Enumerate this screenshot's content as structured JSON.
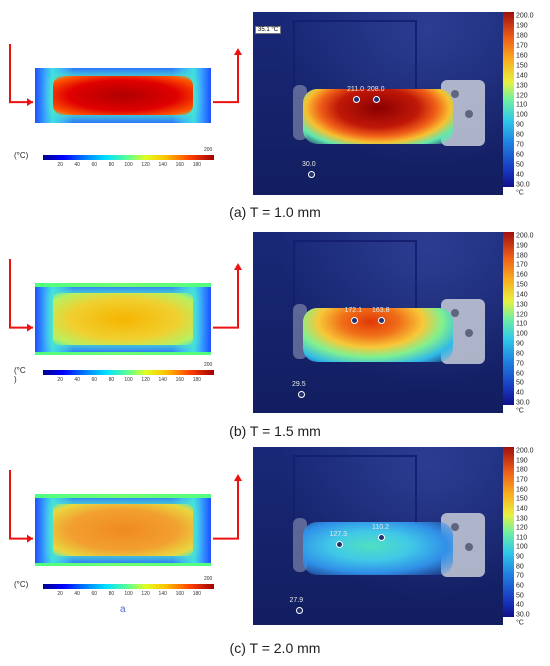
{
  "panels": [
    {
      "caption": "(a) T = 1.0 mm",
      "unit": "(°C)",
      "extra_label": "",
      "max_temp": "35.1 °C",
      "hot_level": 1.0,
      "markers": [
        {
          "label": "211.0",
          "fx": 0.4,
          "fy": 0.46
        },
        {
          "label": "208.0",
          "fx": 0.48,
          "fy": 0.46
        },
        {
          "label": "30.0",
          "fx": 0.22,
          "fy": 0.87
        }
      ]
    },
    {
      "caption": "(b) T = 1.5 mm",
      "unit": "(°C\n)",
      "extra_label": "",
      "max_temp": "",
      "hot_level": 0.6,
      "markers": [
        {
          "label": "172.1",
          "fx": 0.39,
          "fy": 0.47
        },
        {
          "label": "163.8",
          "fx": 0.5,
          "fy": 0.47
        },
        {
          "label": "29.5",
          "fx": 0.18,
          "fy": 0.88
        }
      ]
    },
    {
      "caption": "(c) T = 2.0 mm",
      "unit": "(°C)",
      "extra_label": "a",
      "max_temp": "",
      "hot_level": 0.55,
      "markers": [
        {
          "label": "127.3",
          "fx": 0.33,
          "fy": 0.53
        },
        {
          "label": "110.2",
          "fx": 0.5,
          "fy": 0.49
        },
        {
          "label": "27.9",
          "fx": 0.17,
          "fy": 0.9
        }
      ]
    }
  ],
  "sim_colorbar": {
    "ticks": [
      "20",
      "40",
      "60",
      "80",
      "100",
      "120",
      "140",
      "160",
      "180"
    ],
    "end_label": "200"
  },
  "thermal_scale": {
    "top_label": "200.0",
    "ticks": [
      "190",
      "180",
      "170",
      "160",
      "150",
      "140",
      "130",
      "120",
      "110",
      "100",
      "90",
      "80",
      "70",
      "60",
      "50",
      "40"
    ],
    "bottom_label": "30.0",
    "unit": "°C"
  }
}
